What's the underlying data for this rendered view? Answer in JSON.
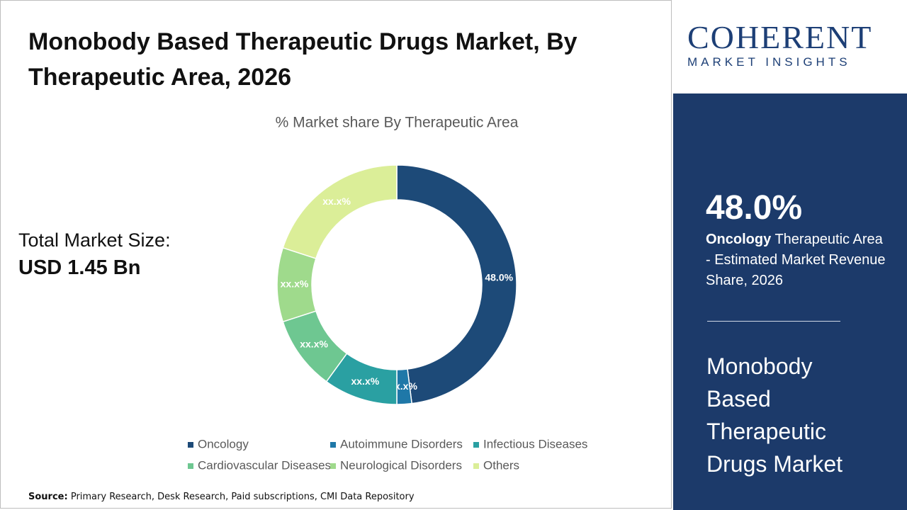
{
  "title": "Monobody Based Therapeutic Drugs Market, By Therapeutic Area, 2026",
  "total_market": {
    "label": "Total Market Size:",
    "value": "USD 1.45 Bn"
  },
  "chart_data": {
    "type": "donut",
    "title": "% Market share By Therapeutic Area",
    "categories": [
      "Oncology",
      "Autoimmune Disorders",
      "Infectious Diseases",
      "Cardiovascular Diseases",
      "Neurological Disorders",
      "Others"
    ],
    "values": [
      48.0,
      2,
      10,
      10,
      10,
      20
    ],
    "value_labels": [
      "48.0%",
      "xx.x%",
      "xx.x%",
      "xx.x%",
      "xx.x%",
      "xx.x%"
    ],
    "colors": [
      "#1d4a78",
      "#1f78a8",
      "#2aa0a2",
      "#6ec791",
      "#9fda8c",
      "#dbee98"
    ],
    "legend": "bottom"
  },
  "logo": {
    "name": "COHERENT",
    "tagline": "MARKET INSIGHTS"
  },
  "highlight": {
    "value": "48.0%",
    "segment": "Oncology",
    "description": "Therapeutic Area - Estimated Market Revenue Share, 2026"
  },
  "market_name": "Monobody Based Therapeutic Drugs Market",
  "source": {
    "label": "Source:",
    "text": "Primary Research, Desk Research, Paid subscriptions, CMI Data Repository"
  }
}
